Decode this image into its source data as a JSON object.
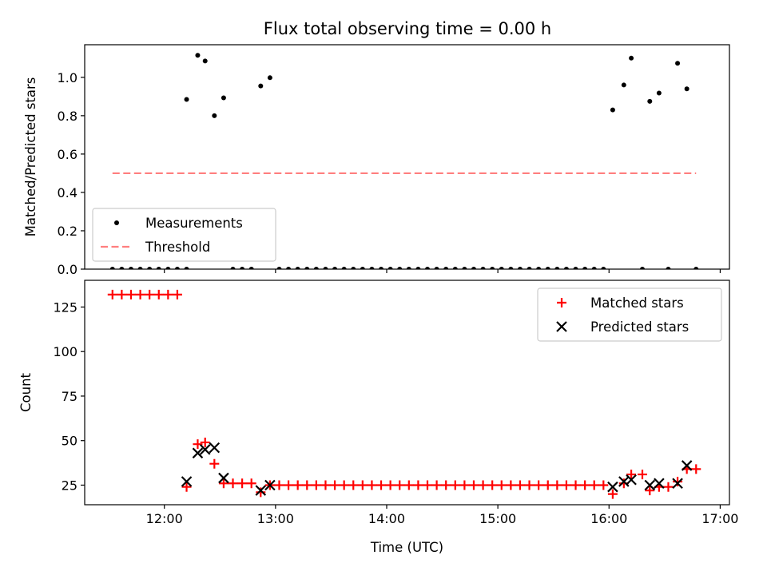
{
  "title": "Flux total observing time = 0.00 h",
  "chart_data": [
    {
      "type": "scatter",
      "panel": "top",
      "ylabel": "Matched/Predicted stars",
      "xlabel": "",
      "ylim": [
        0,
        1.17
      ],
      "xlim": [
        "11:17",
        "17:05"
      ],
      "yticks": [
        "0.0",
        "0.2",
        "0.4",
        "0.6",
        "0.8",
        "1.0"
      ],
      "legend": {
        "placement": "lower-left",
        "entries": [
          "Measurements",
          "Threshold"
        ]
      },
      "series": [
        {
          "name": "Measurements",
          "color": "#000000",
          "marker": "dot",
          "points": [
            [
              "11:32",
              0.0
            ],
            [
              "11:37",
              0.0
            ],
            [
              "11:42",
              0.0
            ],
            [
              "11:47",
              0.0
            ],
            [
              "11:52",
              0.0
            ],
            [
              "11:57",
              0.0
            ],
            [
              "12:02",
              0.0
            ],
            [
              "12:07",
              0.0
            ],
            [
              "12:12",
              0.0
            ],
            [
              "12:12",
              0.885
            ],
            [
              "12:18",
              1.115
            ],
            [
              "12:22",
              1.085
            ],
            [
              "12:27",
              0.8
            ],
            [
              "12:32",
              0.893
            ],
            [
              "12:37",
              0.0
            ],
            [
              "12:42",
              0.0
            ],
            [
              "12:47",
              0.0
            ],
            [
              "12:52",
              0.955
            ],
            [
              "12:57",
              0.998
            ],
            [
              "13:02",
              0.0
            ],
            [
              "13:07",
              0.0
            ],
            [
              "13:12",
              0.0
            ],
            [
              "13:17",
              0.0
            ],
            [
              "13:22",
              0.0
            ],
            [
              "13:27",
              0.0
            ],
            [
              "13:32",
              0.0
            ],
            [
              "13:37",
              0.0
            ],
            [
              "13:42",
              0.0
            ],
            [
              "13:47",
              0.0
            ],
            [
              "13:52",
              0.0
            ],
            [
              "13:57",
              0.0
            ],
            [
              "14:02",
              0.0
            ],
            [
              "14:07",
              0.0
            ],
            [
              "14:12",
              0.0
            ],
            [
              "14:17",
              0.0
            ],
            [
              "14:22",
              0.0
            ],
            [
              "14:27",
              0.0
            ],
            [
              "14:32",
              0.0
            ],
            [
              "14:37",
              0.0
            ],
            [
              "14:42",
              0.0
            ],
            [
              "14:47",
              0.0
            ],
            [
              "14:52",
              0.0
            ],
            [
              "14:57",
              0.0
            ],
            [
              "15:02",
              0.0
            ],
            [
              "15:07",
              0.0
            ],
            [
              "15:12",
              0.0
            ],
            [
              "15:17",
              0.0
            ],
            [
              "15:22",
              0.0
            ],
            [
              "15:27",
              0.0
            ],
            [
              "15:32",
              0.0
            ],
            [
              "15:37",
              0.0
            ],
            [
              "15:42",
              0.0
            ],
            [
              "15:47",
              0.0
            ],
            [
              "15:52",
              0.0
            ],
            [
              "15:57",
              0.0
            ],
            [
              "16:02",
              0.83
            ],
            [
              "16:08",
              0.96
            ],
            [
              "16:12",
              1.1
            ],
            [
              "16:18",
              0.0
            ],
            [
              "16:22",
              0.875
            ],
            [
              "16:27",
              0.918
            ],
            [
              "16:32",
              0.0
            ],
            [
              "16:37",
              1.073
            ],
            [
              "16:42",
              0.94
            ],
            [
              "16:47",
              0.0
            ]
          ]
        },
        {
          "name": "Threshold",
          "color": "#ff7f7f",
          "style": "dashed",
          "points": [
            [
              "11:32",
              0.5
            ],
            [
              "16:47",
              0.5
            ]
          ]
        }
      ]
    },
    {
      "type": "scatter",
      "panel": "bottom",
      "ylabel": "Count",
      "xlabel": "Time (UTC)",
      "ylim": [
        14,
        140
      ],
      "xlim": [
        "11:17",
        "17:05"
      ],
      "yticks": [
        "25",
        "50",
        "75",
        "100",
        "125"
      ],
      "xticks": [
        "12:00",
        "13:00",
        "14:00",
        "15:00",
        "16:00",
        "17:00"
      ],
      "legend": {
        "placement": "upper-right",
        "entries": [
          "Matched stars",
          "Predicted stars"
        ]
      },
      "series": [
        {
          "name": "Matched stars",
          "color": "#ff0000",
          "marker": "plus",
          "points": [
            [
              "11:32",
              132
            ],
            [
              "11:37",
              132
            ],
            [
              "11:42",
              132
            ],
            [
              "11:47",
              132
            ],
            [
              "11:52",
              132
            ],
            [
              "11:57",
              132
            ],
            [
              "12:02",
              132
            ],
            [
              "12:07",
              132
            ],
            [
              "12:12",
              24
            ],
            [
              "12:18",
              48
            ],
            [
              "12:22",
              49
            ],
            [
              "12:27",
              37
            ],
            [
              "12:32",
              26
            ],
            [
              "12:37",
              26
            ],
            [
              "12:42",
              26
            ],
            [
              "12:47",
              26
            ],
            [
              "12:52",
              21
            ],
            [
              "12:57",
              25
            ],
            [
              "13:02",
              25
            ],
            [
              "13:07",
              25
            ],
            [
              "13:12",
              25
            ],
            [
              "13:17",
              25
            ],
            [
              "13:22",
              25
            ],
            [
              "13:27",
              25
            ],
            [
              "13:32",
              25
            ],
            [
              "13:37",
              25
            ],
            [
              "13:42",
              25
            ],
            [
              "13:47",
              25
            ],
            [
              "13:52",
              25
            ],
            [
              "13:57",
              25
            ],
            [
              "14:02",
              25
            ],
            [
              "14:07",
              25
            ],
            [
              "14:12",
              25
            ],
            [
              "14:17",
              25
            ],
            [
              "14:22",
              25
            ],
            [
              "14:27",
              25
            ],
            [
              "14:32",
              25
            ],
            [
              "14:37",
              25
            ],
            [
              "14:42",
              25
            ],
            [
              "14:47",
              25
            ],
            [
              "14:52",
              25
            ],
            [
              "14:57",
              25
            ],
            [
              "15:02",
              25
            ],
            [
              "15:07",
              25
            ],
            [
              "15:12",
              25
            ],
            [
              "15:17",
              25
            ],
            [
              "15:22",
              25
            ],
            [
              "15:27",
              25
            ],
            [
              "15:32",
              25
            ],
            [
              "15:37",
              25
            ],
            [
              "15:42",
              25
            ],
            [
              "15:47",
              25
            ],
            [
              "15:52",
              25
            ],
            [
              "15:57",
              25
            ],
            [
              "16:02",
              20
            ],
            [
              "16:08",
              26
            ],
            [
              "16:12",
              31
            ],
            [
              "16:18",
              31
            ],
            [
              "16:22",
              22
            ],
            [
              "16:27",
              24
            ],
            [
              "16:32",
              24
            ],
            [
              "16:37",
              27
            ],
            [
              "16:42",
              34
            ],
            [
              "16:47",
              34
            ]
          ]
        },
        {
          "name": "Predicted stars",
          "color": "#000000",
          "marker": "x",
          "points": [
            [
              "12:12",
              27
            ],
            [
              "12:18",
              43
            ],
            [
              "12:22",
              45
            ],
            [
              "12:27",
              46
            ],
            [
              "12:32",
              29
            ],
            [
              "12:52",
              22
            ],
            [
              "12:57",
              25
            ],
            [
              "16:02",
              24
            ],
            [
              "16:08",
              27
            ],
            [
              "16:12",
              28
            ],
            [
              "16:22",
              25
            ],
            [
              "16:27",
              26
            ],
            [
              "16:37",
              26
            ],
            [
              "16:42",
              36
            ]
          ]
        }
      ]
    }
  ]
}
